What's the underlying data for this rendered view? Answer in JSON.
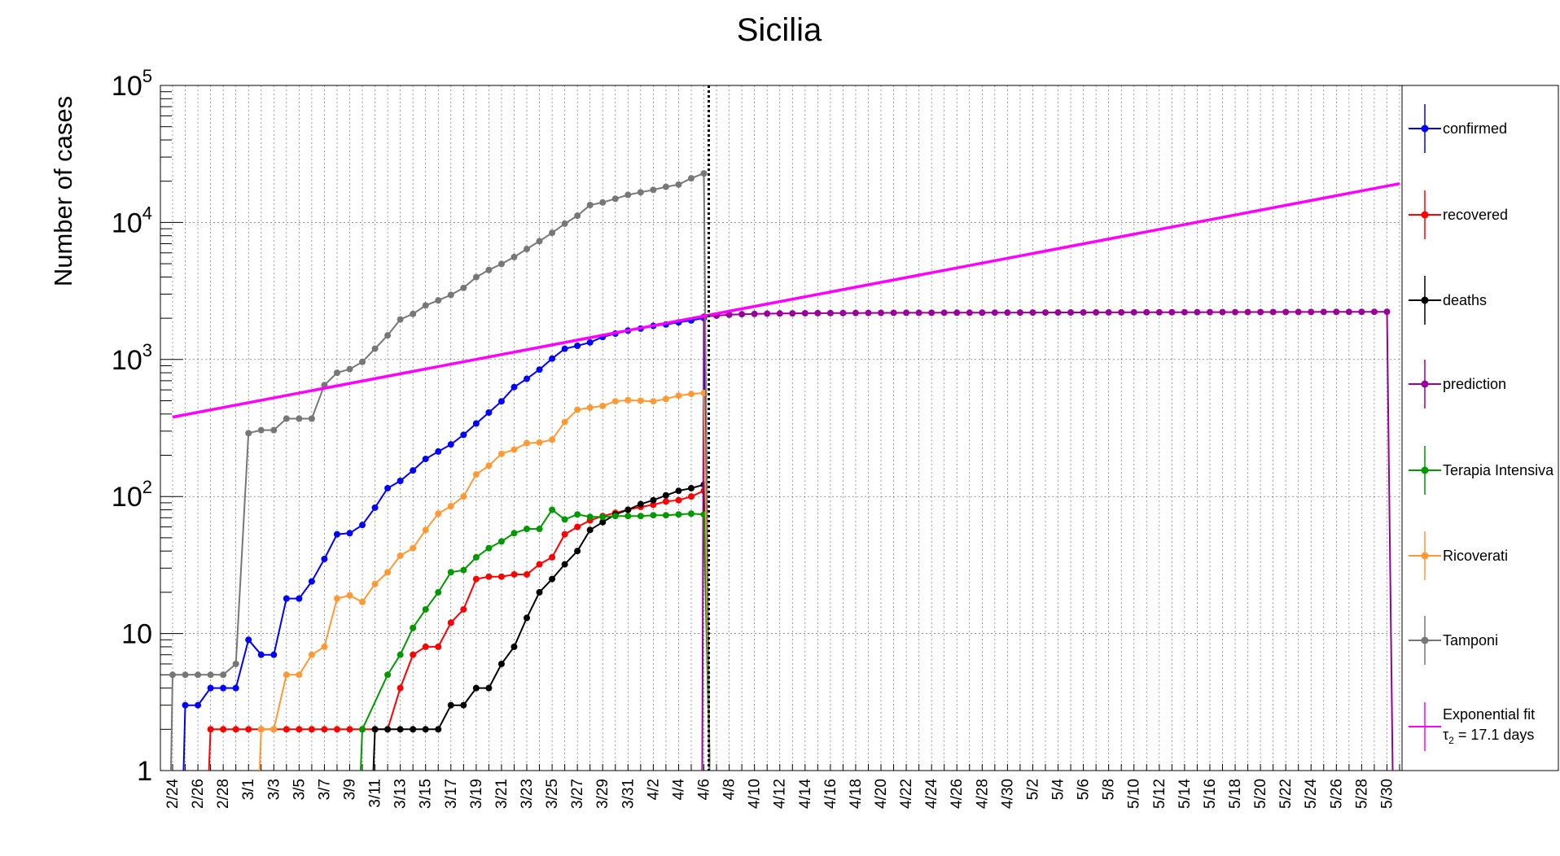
{
  "chart_data": {
    "type": "line",
    "title": "Sicilia",
    "ylabel": "Number of cases",
    "xlabel": "",
    "yscale": "log",
    "ylim": [
      1,
      100000
    ],
    "grid": true,
    "legend_position": "right",
    "x_start": "2/24",
    "x_end": "5/31",
    "x_tick_labels": [
      "2/24",
      "2/26",
      "2/28",
      "3/1",
      "3/3",
      "3/5",
      "3/7",
      "3/9",
      "3/11",
      "3/13",
      "3/15",
      "3/17",
      "3/19",
      "3/21",
      "3/23",
      "3/25",
      "3/27",
      "3/29",
      "3/31",
      "4/2",
      "4/4",
      "4/6",
      "4/8",
      "4/10",
      "4/12",
      "4/14",
      "4/16",
      "4/18",
      "4/20",
      "4/22",
      "4/24",
      "4/26",
      "4/28",
      "4/30",
      "5/2",
      "5/4",
      "5/6",
      "5/8",
      "5/10",
      "5/12",
      "5/14",
      "5/16",
      "5/18",
      "5/20",
      "5/22",
      "5/24",
      "5/26",
      "5/28",
      "5/30"
    ],
    "y_tick_labels": [
      {
        "value": 1,
        "base": "1",
        "exp": ""
      },
      {
        "value": 10,
        "base": "10",
        "exp": ""
      },
      {
        "value": 100,
        "base": "10",
        "exp": "2"
      },
      {
        "value": 1000,
        "base": "10",
        "exp": "3"
      },
      {
        "value": 10000,
        "base": "10",
        "exp": "4"
      },
      {
        "value": 100000,
        "base": "10",
        "exp": "5"
      }
    ],
    "vertical_marker": "4/6",
    "series": [
      {
        "name": "confirmed",
        "color": "#0000ff",
        "marker": true,
        "dates": [
          "2/25",
          "2/26",
          "2/27",
          "2/28",
          "2/29",
          "3/1",
          "3/2",
          "3/3",
          "3/4",
          "3/5",
          "3/6",
          "3/7",
          "3/8",
          "3/9",
          "3/10",
          "3/11",
          "3/12",
          "3/13",
          "3/14",
          "3/15",
          "3/16",
          "3/17",
          "3/18",
          "3/19",
          "3/20",
          "3/21",
          "3/22",
          "3/23",
          "3/24",
          "3/25",
          "3/26",
          "3/27",
          "3/28",
          "3/29",
          "3/30",
          "3/31",
          "4/1",
          "4/2",
          "4/3",
          "4/4",
          "4/5",
          "4/6"
        ],
        "values": [
          3,
          3,
          4,
          4,
          4,
          9,
          7,
          7,
          18,
          18,
          24,
          35,
          53,
          54,
          62,
          83,
          115,
          130,
          155,
          188,
          213,
          240,
          282,
          341,
          410,
          495,
          629,
          723,
          844,
          1015,
          1197,
          1258,
          1332,
          1460,
          1545,
          1625,
          1681,
          1758,
          1800,
          1865,
          1927,
          2005
        ]
      },
      {
        "name": "recovered",
        "color": "#ff0000",
        "marker": true,
        "dates": [
          "2/27",
          "2/28",
          "2/29",
          "3/1",
          "3/2",
          "3/3",
          "3/4",
          "3/5",
          "3/6",
          "3/7",
          "3/8",
          "3/9",
          "3/10",
          "3/11",
          "3/12",
          "3/13",
          "3/14",
          "3/15",
          "3/16",
          "3/17",
          "3/18",
          "3/19",
          "3/20",
          "3/21",
          "3/22",
          "3/23",
          "3/24",
          "3/25",
          "3/26",
          "3/27",
          "3/28",
          "3/29",
          "3/30",
          "3/31",
          "4/1",
          "4/2",
          "4/3",
          "4/4",
          "4/5",
          "4/6"
        ],
        "values": [
          2,
          2,
          2,
          2,
          2,
          2,
          2,
          2,
          2,
          2,
          2,
          2,
          2,
          2,
          2,
          4,
          7,
          8,
          8,
          12,
          15,
          25,
          26,
          26,
          27,
          27,
          32,
          36,
          53,
          60,
          67,
          72,
          76,
          80,
          84,
          87,
          92,
          94,
          100,
          110
        ]
      },
      {
        "name": "deaths",
        "color": "#000000",
        "marker": true,
        "dates": [
          "3/11",
          "3/12",
          "3/13",
          "3/14",
          "3/15",
          "3/16",
          "3/17",
          "3/18",
          "3/19",
          "3/20",
          "3/21",
          "3/22",
          "3/23",
          "3/24",
          "3/25",
          "3/26",
          "3/27",
          "3/28",
          "3/29",
          "3/30",
          "3/31",
          "4/1",
          "4/2",
          "4/3",
          "4/4",
          "4/5",
          "4/6"
        ],
        "values": [
          2,
          2,
          2,
          2,
          2,
          2,
          3,
          3,
          4,
          4,
          6,
          8,
          13,
          20,
          25,
          32,
          40,
          57,
          65,
          74,
          80,
          88,
          94,
          102,
          110,
          115,
          122
        ]
      },
      {
        "name": "prediction",
        "color": "#990099",
        "marker": true,
        "dates": [
          "4/6",
          "4/7",
          "4/8",
          "4/9",
          "4/10",
          "4/11",
          "4/12",
          "4/13",
          "4/14",
          "4/15",
          "4/16",
          "4/17",
          "4/18",
          "4/19",
          "4/20",
          "4/21",
          "4/22",
          "4/23",
          "4/24",
          "4/25",
          "4/26",
          "4/27",
          "4/28",
          "4/29",
          "4/30",
          "5/1",
          "5/2",
          "5/3",
          "5/4",
          "5/5",
          "5/6",
          "5/7",
          "5/8",
          "5/9",
          "5/10",
          "5/11",
          "5/12",
          "5/13",
          "5/14",
          "5/15",
          "5/16",
          "5/17",
          "5/18",
          "5/19",
          "5/20",
          "5/21",
          "5/22",
          "5/23",
          "5/24",
          "5/25",
          "5/26",
          "5/27",
          "5/28",
          "5/29",
          "5/30"
        ],
        "values": [
          2050,
          2090,
          2120,
          2140,
          2150,
          2160,
          2165,
          2170,
          2175,
          2178,
          2180,
          2182,
          2184,
          2186,
          2188,
          2190,
          2191,
          2192,
          2193,
          2194,
          2195,
          2196,
          2197,
          2198,
          2199,
          2200,
          2201,
          2202,
          2203,
          2204,
          2205,
          2206,
          2207,
          2208,
          2209,
          2210,
          2211,
          2212,
          2213,
          2214,
          2215,
          2216,
          2217,
          2218,
          2219,
          2220,
          2221,
          2222,
          2223,
          2224,
          2225,
          2226,
          2227,
          2228,
          2229
        ]
      },
      {
        "name": "Terapia Intensiva",
        "color": "#009900",
        "marker": true,
        "dates": [
          "3/10",
          "3/12",
          "3/13",
          "3/14",
          "3/15",
          "3/16",
          "3/17",
          "3/18",
          "3/19",
          "3/20",
          "3/21",
          "3/22",
          "3/23",
          "3/24",
          "3/25",
          "3/26",
          "3/27",
          "3/28",
          "3/29",
          "3/30",
          "3/31",
          "4/1",
          "4/2",
          "4/3",
          "4/4",
          "4/5",
          "4/6"
        ],
        "values": [
          2,
          5,
          7,
          11,
          15,
          20,
          28,
          29,
          36,
          42,
          47,
          54,
          58,
          58,
          80,
          68,
          74,
          71,
          71,
          72,
          72,
          72,
          73,
          73,
          74,
          75,
          74
        ]
      },
      {
        "name": "Ricoverati",
        "color": "#ff9933",
        "marker": true,
        "dates": [
          "3/2",
          "3/3",
          "3/4",
          "3/5",
          "3/6",
          "3/7",
          "3/8",
          "3/9",
          "3/10",
          "3/11",
          "3/12",
          "3/13",
          "3/14",
          "3/15",
          "3/16",
          "3/17",
          "3/18",
          "3/19",
          "3/20",
          "3/21",
          "3/22",
          "3/23",
          "3/24",
          "3/25",
          "3/26",
          "3/27",
          "3/28",
          "3/29",
          "3/30",
          "3/31",
          "4/1",
          "4/2",
          "4/3",
          "4/4",
          "4/5",
          "4/6"
        ],
        "values": [
          2,
          2,
          5,
          5,
          7,
          8,
          18,
          19,
          17,
          23,
          28,
          37,
          42,
          57,
          75,
          85,
          100,
          145,
          168,
          205,
          220,
          245,
          248,
          260,
          350,
          430,
          445,
          458,
          495,
          505,
          500,
          495,
          515,
          545,
          560,
          570
        ]
      },
      {
        "name": "Tamponi",
        "color": "#777777",
        "marker": true,
        "dates": [
          "2/24",
          "2/25",
          "2/26",
          "2/27",
          "2/28",
          "2/29",
          "3/1",
          "3/2",
          "3/3",
          "3/4",
          "3/5",
          "3/6",
          "3/7",
          "3/8",
          "3/9",
          "3/10",
          "3/11",
          "3/12",
          "3/13",
          "3/14",
          "3/15",
          "3/16",
          "3/17",
          "3/18",
          "3/19",
          "3/20",
          "3/21",
          "3/22",
          "3/23",
          "3/24",
          "3/25",
          "3/26",
          "3/27",
          "3/28",
          "3/29",
          "3/30",
          "3/31",
          "4/1",
          "4/2",
          "4/3",
          "4/4",
          "4/5",
          "4/6"
        ],
        "values": [
          5,
          5,
          5,
          5,
          5,
          6,
          290,
          305,
          305,
          370,
          370,
          370,
          650,
          800,
          850,
          960,
          1200,
          1500,
          1960,
          2150,
          2480,
          2700,
          2960,
          3330,
          3990,
          4500,
          4980,
          5590,
          6400,
          7300,
          8400,
          9800,
          11200,
          13400,
          14000,
          14900,
          15900,
          16600,
          17300,
          18200,
          18900,
          21000,
          22800
        ]
      },
      {
        "name": "Exponential fit",
        "legend_line2": "τ₂ = 17.1 days",
        "legend_tau_label": "τ",
        "legend_tau_sub": "2",
        "legend_tau_text": " = 17.1 days",
        "color": "#ff00ff",
        "marker": false,
        "dates": [
          "2/24",
          "5/31"
        ],
        "values": [
          380,
          19200
        ]
      }
    ]
  }
}
